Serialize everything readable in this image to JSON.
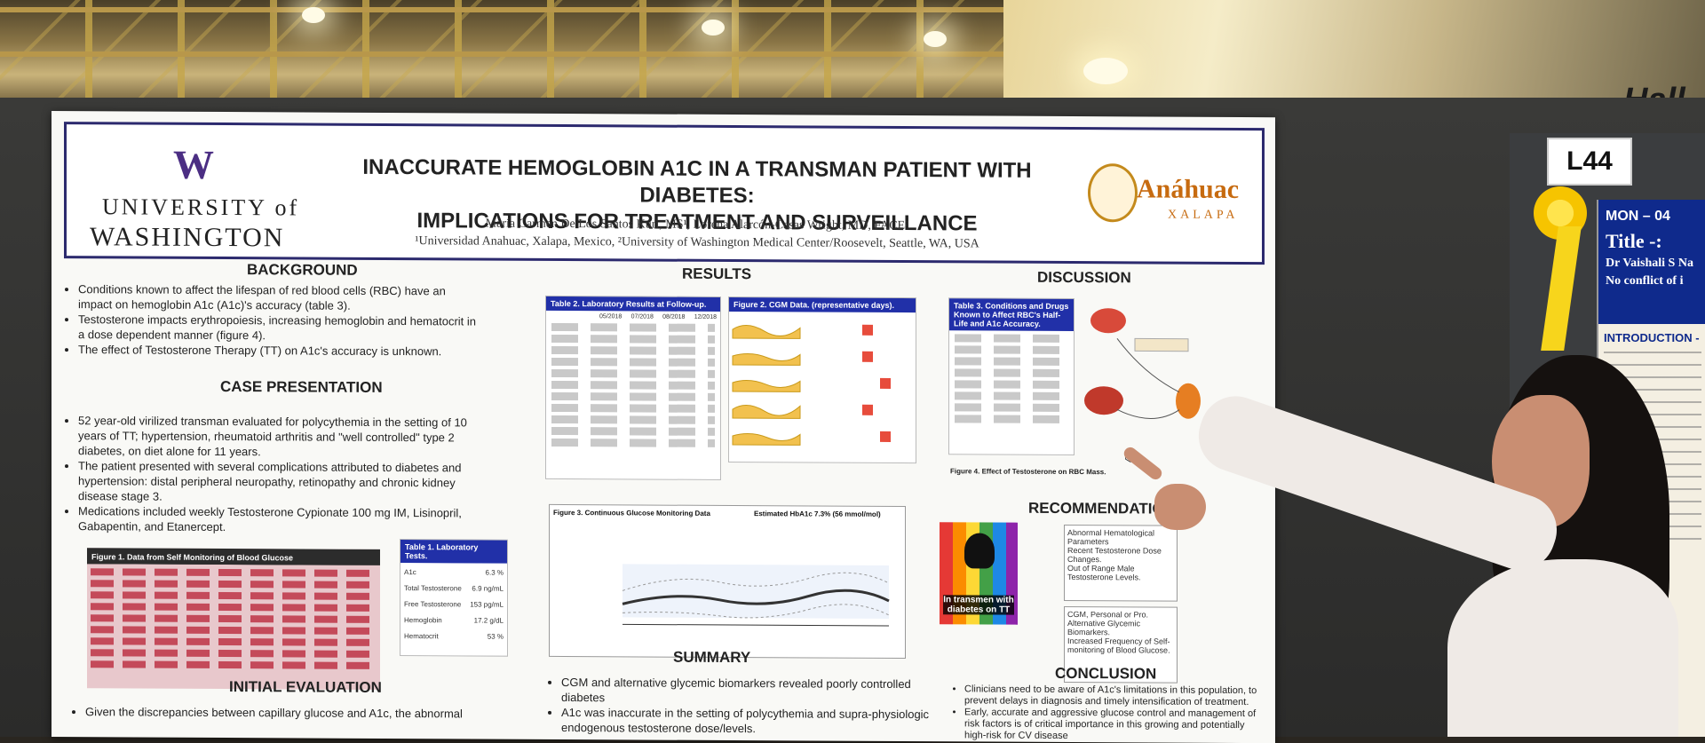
{
  "poster": {
    "university": {
      "logo": "W",
      "line1": "UNIVERSITY of",
      "line2": "WASHINGTON"
    },
    "title_line1": "INACCURATE HEMOGLOBIN A1C IN A TRANSMAN PATIENT WITH DIABETES:",
    "title_line2": "IMPLICATIONS FOR TREATMENT AND SURVEILLANCE",
    "authors": "María Carmen De Los Santos Kuri, MS¹, Lorena Alarcón-Casas Wright, MD, FACE²",
    "affiliations": "¹Universidad Anahuac, Xalapa, Mexico, ²University of Washington Medical Center/Roosevelt, Seattle, WA, USA",
    "partner": {
      "name": "Anáhuac",
      "city": "XALAPA"
    },
    "sections": {
      "background": "BACKGROUND",
      "case": "CASE PRESENTATION",
      "initial": "INITIAL EVALUATION",
      "results": "RESULTS",
      "summary": "SUMMARY",
      "discussion": "DISCUSSION",
      "recommendations": "RECOMMENDATIONS",
      "conclusion": "CONCLUSION"
    },
    "background_items": [
      "Conditions known to affect the lifespan of red blood cells (RBC) have an impact on hemoglobin A1c (A1c)'s accuracy (table 3).",
      "Testosterone impacts erythropoiesis, increasing hemoglobin and hematocrit in a dose dependent manner (figure 4).",
      "The effect of Testosterone Therapy (TT) on A1c's accuracy is unknown."
    ],
    "case_items": [
      "52 year-old virilized transman evaluated for polycythemia in the setting of 10 years of TT; hypertension, rheumatoid arthritis and \"well controlled\" type 2 diabetes, on diet alone for 11 years.",
      "The patient presented with several complications attributed to diabetes and hypertension: distal peripheral neuropathy, retinopathy and chronic kidney disease stage 3.",
      "Medications included weekly Testosterone Cypionate 100 mg IM, Lisinopril, Gabapentin, and Etanercept."
    ],
    "initial_text": "Given the discrepancies between capillary glucose and A1c, the abnormal",
    "table1_title": "Table 1. Laboratory Tests.",
    "table1_rows": [
      {
        "label": "A1c",
        "value": "6.3 %"
      },
      {
        "label": "Total Testosterone",
        "value": "6.9 ng/mL"
      },
      {
        "label": "Free Testosterone",
        "value": "153 pg/mL"
      },
      {
        "label": "Hemoglobin",
        "value": "17.2 g/dL"
      },
      {
        "label": "Hematocrit",
        "value": "53 %"
      }
    ],
    "figure1_title": "Figure 1. Data from Self Monitoring of Blood Glucose",
    "table2_title": "Table 2. Laboratory Results at Follow-up.",
    "table2_dates": [
      "05/2018",
      "07/2018",
      "08/2018",
      "12/2018"
    ],
    "figure2_title": "Figure 2. CGM Data. (representative days).",
    "figure3_title": "Figure 3. Continuous Glucose Monitoring Data",
    "figure3_estimate": "Estimated HbA1c 7.3% (56 mmol/mol)",
    "table3_title": "Table 3. Conditions and Drugs Known to Affect RBC's Half-Life and A1c Accuracy.",
    "figure4_title": "Figure 4. Effect of Testosterone on RBC Mass.",
    "recommend_boxes": [
      "Abnormal Hematological Parameters",
      "Recent Testosterone Dose Changes.",
      "Out of Range Male Testosterone Levels.",
      "CGM, Personal or Pro.",
      "Alternative Glycemic Biomarkers.",
      "Increased Frequency of Self-monitoring of Blood Glucose."
    ],
    "face_caption": "In transmen with diabetes on TT",
    "summary_items": [
      "CGM and alternative glycemic biomarkers revealed poorly controlled diabetes",
      "A1c was inaccurate in the setting of polycythemia and supra-physiologic endogenous testosterone dose/levels."
    ],
    "conclusion_items": [
      "Clinicians need to be aware of A1c's limitations in this population, to prevent delays in diagnosis and timely intensification of treatment.",
      "Early, accurate and aggressive glucose control and management of risk factors is of critical importance in this growing and potentially high-risk for CV disease"
    ]
  },
  "booth_label": "L44",
  "hall_sign": "Hall",
  "poster2": {
    "header_a": "MON – 04",
    "header_b": "Title -:",
    "header_c": "Dr Vaishali S Na",
    "header_d": "No conflict of i",
    "intro": "INTRODUCTION -"
  }
}
